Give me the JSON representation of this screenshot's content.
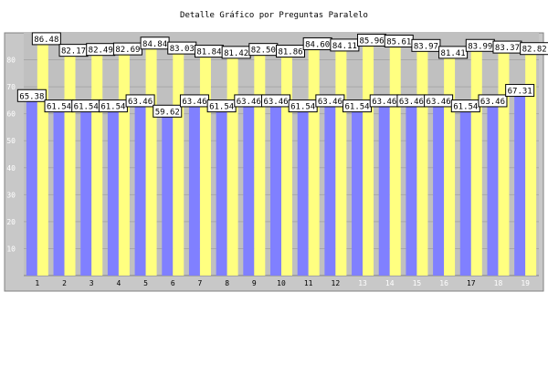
{
  "chart_data": {
    "type": "bar",
    "title": "Detalle Gráfico por Preguntas Paralelo",
    "categories": [
      "1",
      "2",
      "3",
      "4",
      "5",
      "6",
      "7",
      "8",
      "9",
      "10",
      "11",
      "12",
      "13",
      "14",
      "15",
      "16",
      "17",
      "18",
      "19"
    ],
    "series": [
      {
        "color": "#8080ff",
        "values": [
          65.38,
          61.54,
          61.54,
          61.54,
          63.46,
          59.62,
          63.46,
          61.54,
          63.46,
          63.46,
          61.54,
          63.46,
          61.54,
          63.46,
          63.46,
          63.46,
          61.54,
          63.46,
          67.31
        ],
        "labels": [
          "65.38",
          "61.54",
          "61.54",
          "61.54",
          "63.46",
          "59.62",
          "63.46",
          "61.54",
          "63.46",
          "63.46",
          "61.54",
          "63.46",
          "61.54",
          "63.46",
          "63.46",
          "63.46",
          "61.54",
          "63.46",
          "67.31"
        ]
      },
      {
        "color": "#ffff80",
        "values": [
          86.48,
          82.17,
          82.49,
          82.69,
          84.84,
          83.03,
          81.84,
          81.42,
          82.5,
          81.86,
          84.6,
          84.11,
          85.96,
          85.61,
          83.97,
          81.41,
          83.99,
          83.37,
          82.82
        ],
        "labels": [
          "86.48",
          "82.17",
          "82.49",
          "82.69",
          "84.84",
          "83.03",
          "81.84",
          "81.42",
          "82.50",
          "81.86",
          "84.60",
          "84.11",
          "85.96",
          "85.61",
          "83.97",
          "81.41",
          "83.99",
          "83.37",
          "82.82"
        ]
      }
    ],
    "y_ticks": [
      "10",
      "20",
      "30",
      "40",
      "50",
      "60",
      "70",
      "80"
    ],
    "ylim": [
      0,
      90
    ],
    "grid": true,
    "plot_background": "#c0c0c0"
  }
}
